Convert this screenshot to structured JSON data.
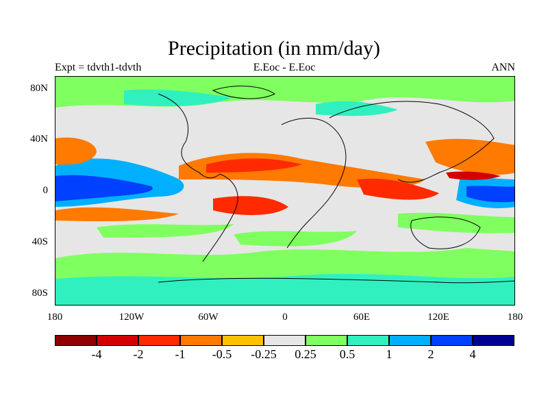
{
  "chart_data": {
    "type": "heatmap",
    "title": "Precipitation (in mm/day)",
    "subtitle_left": "Expt = tdvth1-tdvth",
    "subtitle_center": "E.Eoc - E.Eoc",
    "subtitle_right": "ANN",
    "x_ticks": [
      "180",
      "120W",
      "60W",
      "0",
      "60E",
      "120E",
      "180"
    ],
    "y_ticks": [
      "80N",
      "40N",
      "0",
      "40S",
      "80S"
    ],
    "colorbar": {
      "colors": [
        "#8b0000",
        "#d40000",
        "#ff2a00",
        "#ff7a00",
        "#ffc000",
        "#e6e6e6",
        "#80ff60",
        "#30f0c0",
        "#00b0ff",
        "#0040ff",
        "#000090"
      ],
      "labels": [
        "-4",
        "-2",
        "-1",
        "-0.5",
        "-0.25",
        "0.25",
        "0.5",
        "1",
        "2",
        "4"
      ]
    }
  }
}
